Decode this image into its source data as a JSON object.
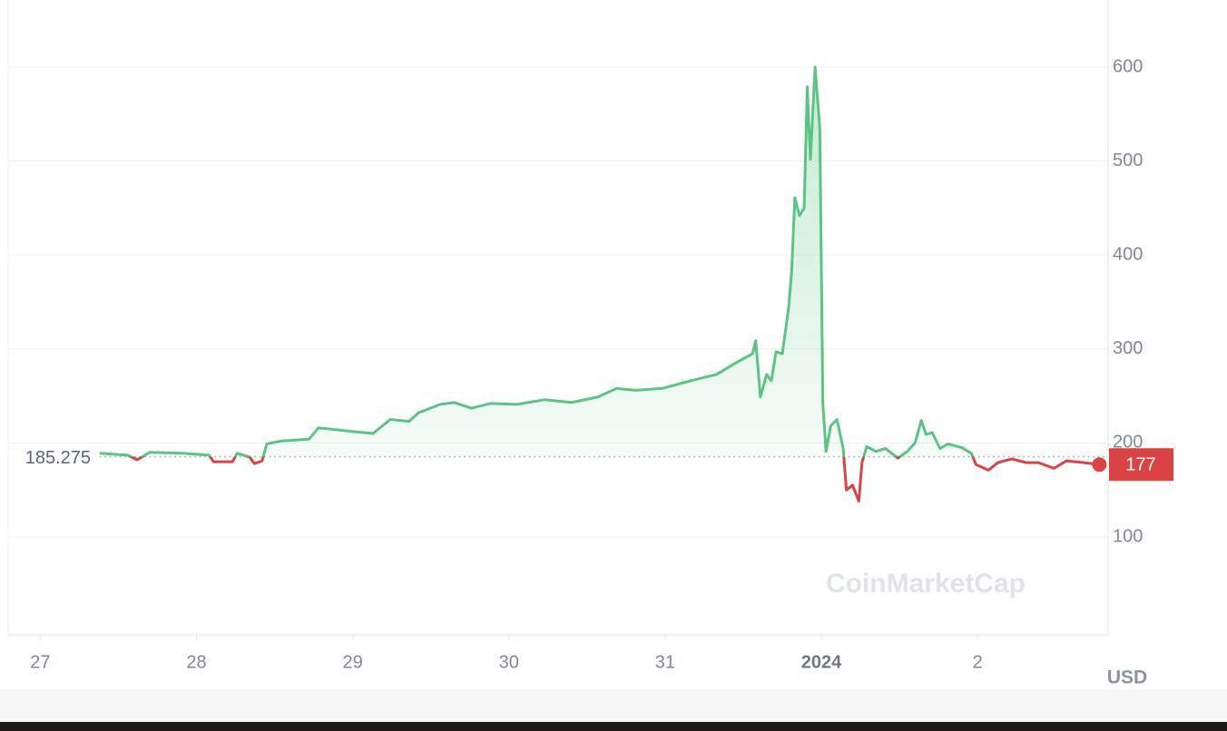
{
  "chart_data": {
    "type": "line",
    "x": [
      0.38,
      0.56,
      0.62,
      0.7,
      0.91,
      1.08,
      1.11,
      1.23,
      1.26,
      1.34,
      1.37,
      1.42,
      1.45,
      1.54,
      1.72,
      1.78,
      1.95,
      2.13,
      2.24,
      2.36,
      2.42,
      2.56,
      2.65,
      2.76,
      2.88,
      3.05,
      3.23,
      3.4,
      3.57,
      3.69,
      3.81,
      3.98,
      4.16,
      4.33,
      4.45,
      4.56,
      4.58,
      4.61,
      4.65,
      4.68,
      4.71,
      4.75,
      4.79,
      4.81,
      4.83,
      4.86,
      4.89,
      4.91,
      4.93,
      4.96,
      4.99,
      5.01,
      5.03,
      5.06,
      5.1,
      5.14,
      5.16,
      5.2,
      5.24,
      5.26,
      5.29,
      5.35,
      5.41,
      5.49,
      5.55,
      5.6,
      5.64,
      5.67,
      5.71,
      5.76,
      5.81,
      5.9,
      5.96,
      5.99,
      6.07,
      6.13,
      6.22,
      6.31,
      6.39,
      6.49,
      6.57,
      6.68,
      6.78
    ],
    "values": [
      189,
      187,
      182,
      190,
      189,
      187,
      180,
      180,
      189,
      185,
      178,
      181,
      199,
      202,
      204,
      216,
      213,
      210,
      225,
      223,
      232,
      241,
      243,
      237,
      242,
      241,
      246,
      243,
      249,
      258,
      256,
      258,
      266,
      273,
      285,
      295,
      309,
      249,
      273,
      266,
      297,
      295,
      343,
      382,
      461,
      442,
      450,
      579,
      502,
      600,
      536,
      242,
      191,
      218,
      225,
      194,
      150,
      155,
      138,
      179,
      196,
      191,
      194,
      184,
      191,
      200,
      224,
      209,
      211,
      194,
      199,
      195,
      189,
      177,
      171,
      179,
      183,
      179,
      179,
      173,
      181,
      179,
      177
    ],
    "up_color": "#5bc483",
    "down_color": "#d94343",
    "baseline": 185.275,
    "last_price": 177,
    "xlim": [
      -0.2,
      6.83
    ],
    "xticks": [
      {
        "value": 0,
        "label": "27"
      },
      {
        "value": 1,
        "label": "28"
      },
      {
        "value": 2,
        "label": "29"
      },
      {
        "value": 3,
        "label": "30"
      },
      {
        "value": 4,
        "label": "31"
      },
      {
        "value": 5,
        "label": "2024"
      },
      {
        "value": 6,
        "label": "2"
      }
    ],
    "ylim": [
      0,
      671.4
    ],
    "yticks": [
      100,
      200,
      300,
      400,
      500,
      600
    ],
    "grid": true,
    "currency": "USD",
    "watermark": "CoinMarketCap"
  }
}
